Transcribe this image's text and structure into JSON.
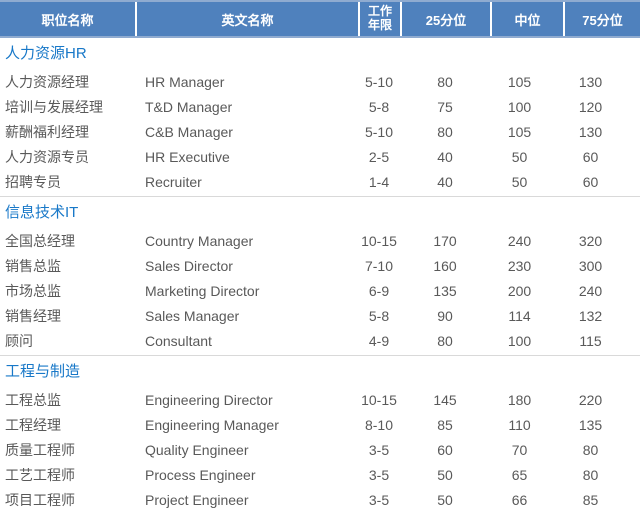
{
  "chart_data": {
    "type": "table",
    "columns": [
      "职位名称",
      "英文名称",
      "工作年限",
      "25分位",
      "中位",
      "75分位"
    ],
    "sections": [
      {
        "title": "人力资源HR",
        "rows": [
          [
            "人力资源经理",
            "HR Manager",
            "5-10",
            "80",
            "105",
            "130"
          ],
          [
            "培训与发展经理",
            "T&D Manager",
            "5-8",
            "75",
            "100",
            "120"
          ],
          [
            "薪酬福利经理",
            "C&B Manager",
            "5-10",
            "80",
            "105",
            "130"
          ],
          [
            "人力资源专员",
            "HR Executive",
            "2-5",
            "40",
            "50",
            "60"
          ],
          [
            "招聘专员",
            "Recruiter",
            "1-4",
            "40",
            "50",
            "60"
          ]
        ]
      },
      {
        "title": "信息技术IT",
        "rows": [
          [
            "全国总经理",
            "Country Manager",
            "10-15",
            "170",
            "240",
            "320"
          ],
          [
            "销售总监",
            "Sales Director",
            "7-10",
            "160",
            "230",
            "300"
          ],
          [
            "市场总监",
            "Marketing Director",
            "6-9",
            "135",
            "200",
            "240"
          ],
          [
            "销售经理",
            "Sales Manager",
            "5-8",
            "90",
            "114",
            "132"
          ],
          [
            "顾问",
            "Consultant",
            "4-9",
            "80",
            "100",
            "115"
          ]
        ]
      },
      {
        "title": "工程与制造",
        "rows": [
          [
            "工程总监",
            "Engineering Director",
            "10-15",
            "145",
            "180",
            "220"
          ],
          [
            "工程经理",
            "Engineering Manager",
            "8-10",
            "85",
            "110",
            "135"
          ],
          [
            "质量工程师",
            "Quality Engineer",
            "3-5",
            "60",
            "70",
            "80"
          ],
          [
            "工艺工程师",
            "Process Engineer",
            "3-5",
            "50",
            "65",
            "80"
          ],
          [
            "项目工程师",
            "Project Engineer",
            "3-5",
            "50",
            "66",
            "85"
          ]
        ]
      }
    ]
  },
  "colors": {
    "header_bg": "#4f81bd",
    "header_border": "#8fabd0",
    "header_text": "#ffffff",
    "section_title": "#1878c8",
    "body_text": "#595959",
    "divider": "#d9d9d9"
  }
}
